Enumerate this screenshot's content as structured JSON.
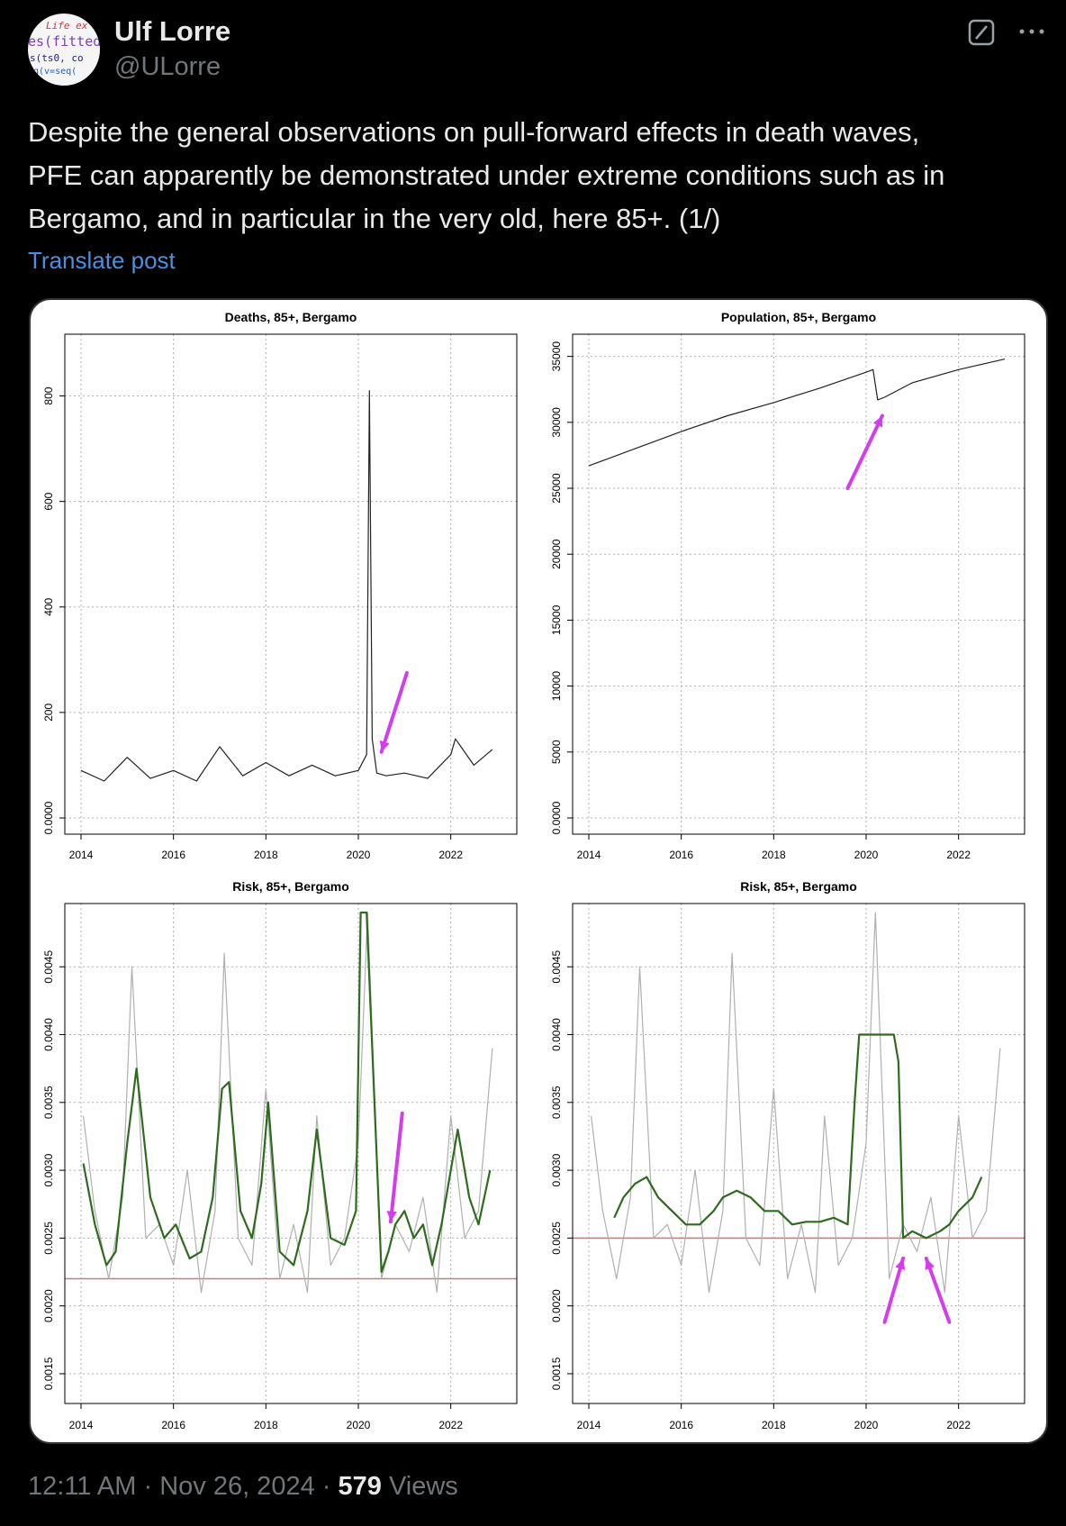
{
  "author": {
    "name": "Ulf Lorre",
    "handle": "@ULorre"
  },
  "avatar_text": [
    "Life ex",
    "es(fitted(",
    "s(ts0, co",
    "q(v=seq("
  ],
  "post": {
    "lines": [
      "Despite the general observations on pull-forward effects in death waves,",
      "PFE can apparently be demonstrated under extreme conditions such as in",
      "Bergamo, and in particular in the very old, here 85+. (1/)"
    ],
    "translate_label": "Translate post"
  },
  "meta": {
    "time": "12:11 AM",
    "sep": "·",
    "date": "Nov 26, 2024",
    "views_count": "579",
    "views_label": "Views"
  },
  "icons": {
    "grok": "grok-icon",
    "more": "more-icon"
  },
  "colors": {
    "accent_link": "#4a90e2",
    "smooth_line": "#2e6b1f",
    "raw_line": "#b0b0b0",
    "baseline": "#c08080",
    "arrow": "#d53cf0"
  },
  "chart_data": [
    {
      "type": "line",
      "title": "Deaths, 85+, Bergamo",
      "xlim": [
        2014,
        2023
      ],
      "ylim": [
        0,
        900
      ],
      "xticks": [
        2014,
        2016,
        2018,
        2020,
        2022
      ],
      "yticks": [
        0,
        200,
        400,
        600,
        800
      ],
      "grid": true,
      "series": [
        {
          "x": [
            2014.0,
            2014.5,
            2015.0,
            2015.5,
            2016.0,
            2016.5,
            2017.0,
            2017.5,
            2018.0,
            2018.5,
            2019.0,
            2019.5,
            2020.0,
            2020.18,
            2020.24,
            2020.3,
            2020.4,
            2020.6,
            2021.0,
            2021.5,
            2022.0,
            2022.1,
            2022.5,
            2022.9
          ],
          "y": [
            90,
            70,
            115,
            75,
            90,
            70,
            135,
            80,
            105,
            80,
            100,
            80,
            90,
            120,
            810,
            150,
            85,
            80,
            85,
            75,
            120,
            150,
            100,
            130
          ]
        }
      ],
      "annotations": [
        {
          "type": "arrow",
          "from": [
            2021.05,
            275
          ],
          "to": [
            2020.5,
            125
          ]
        }
      ]
    },
    {
      "type": "line",
      "title": "Population, 85+, Bergamo",
      "xlim": [
        2014,
        2023
      ],
      "ylim": [
        0,
        36000
      ],
      "xticks": [
        2014,
        2016,
        2018,
        2020,
        2022
      ],
      "yticks": [
        0,
        5000,
        10000,
        15000,
        20000,
        25000,
        30000,
        35000
      ],
      "grid": true,
      "series": [
        {
          "x": [
            2014.0,
            2015.0,
            2016.0,
            2017.0,
            2018.0,
            2019.0,
            2020.0,
            2020.15,
            2020.25,
            2020.4,
            2021.0,
            2022.0,
            2023.0
          ],
          "y": [
            26700,
            28000,
            29300,
            30500,
            31500,
            32600,
            33800,
            34000,
            31700,
            31900,
            33000,
            34000,
            34800
          ]
        }
      ],
      "annotations": [
        {
          "type": "arrow",
          "from": [
            2019.6,
            25000
          ],
          "to": [
            2020.35,
            30500
          ]
        }
      ]
    },
    {
      "type": "line",
      "title": "Risk, 85+, Bergamo",
      "xlim": [
        2014,
        2023
      ],
      "ylim": [
        0.0014,
        0.0049
      ],
      "xticks": [
        2014,
        2016,
        2018,
        2020,
        2022
      ],
      "yticks": [
        0.0015,
        0.002,
        0.0025,
        0.003,
        0.0035,
        0.004,
        0.0045
      ],
      "grid": true,
      "baseline": 0.0022,
      "series": [
        {
          "kind": "raw",
          "x": [
            2014.05,
            2014.3,
            2014.6,
            2014.9,
            2015.1,
            2015.4,
            2015.7,
            2016.0,
            2016.3,
            2016.6,
            2016.9,
            2017.1,
            2017.4,
            2017.7,
            2018.0,
            2018.3,
            2018.6,
            2018.9,
            2019.1,
            2019.4,
            2019.7,
            2020.0,
            2020.2,
            2020.5,
            2020.8,
            2021.1,
            2021.4,
            2021.7,
            2022.0,
            2022.3,
            2022.6,
            2022.9
          ],
          "y": [
            0.0034,
            0.0027,
            0.0022,
            0.0028,
            0.0045,
            0.0025,
            0.0026,
            0.0023,
            0.003,
            0.0021,
            0.0027,
            0.0046,
            0.0025,
            0.0023,
            0.0036,
            0.0022,
            0.0026,
            0.0021,
            0.0034,
            0.0023,
            0.0025,
            0.0032,
            0.0049,
            0.0022,
            0.0026,
            0.0024,
            0.0028,
            0.0021,
            0.0034,
            0.0025,
            0.0027,
            0.0039
          ]
        },
        {
          "kind": "smooth",
          "x": [
            2014.05,
            2014.3,
            2014.55,
            2014.75,
            2015.0,
            2015.2,
            2015.5,
            2015.8,
            2016.05,
            2016.35,
            2016.6,
            2016.85,
            2017.05,
            2017.2,
            2017.45,
            2017.7,
            2017.9,
            2018.05,
            2018.3,
            2018.6,
            2018.9,
            2019.1,
            2019.4,
            2019.7,
            2019.95,
            2020.05,
            2020.18,
            2020.5,
            2020.65,
            2020.8,
            2021.0,
            2021.2,
            2021.4,
            2021.6,
            2021.8,
            2022.0,
            2022.15,
            2022.4,
            2022.6,
            2022.85
          ],
          "y": [
            0.00305,
            0.0026,
            0.0023,
            0.0024,
            0.0032,
            0.00375,
            0.0028,
            0.0025,
            0.0026,
            0.00235,
            0.0024,
            0.0028,
            0.0036,
            0.00365,
            0.0027,
            0.0025,
            0.0029,
            0.0035,
            0.0024,
            0.0023,
            0.0027,
            0.0033,
            0.0025,
            0.00245,
            0.0027,
            0.0049,
            0.0049,
            0.00225,
            0.0024,
            0.0026,
            0.0027,
            0.0025,
            0.0026,
            0.0023,
            0.0026,
            0.003,
            0.0033,
            0.0028,
            0.0026,
            0.003
          ]
        }
      ],
      "annotations": [
        {
          "type": "arrow",
          "from": [
            2020.95,
            0.00342
          ],
          "to": [
            2020.7,
            0.00262
          ]
        }
      ]
    },
    {
      "type": "line",
      "title": "Risk, 85+, Bergamo",
      "xlim": [
        2014,
        2023
      ],
      "ylim": [
        0.0014,
        0.0049
      ],
      "xticks": [
        2014,
        2016,
        2018,
        2020,
        2022
      ],
      "yticks": [
        0.0015,
        0.002,
        0.0025,
        0.003,
        0.0035,
        0.004,
        0.0045
      ],
      "grid": true,
      "baseline": 0.0025,
      "series": [
        {
          "kind": "raw",
          "x": [
            2014.05,
            2014.3,
            2014.6,
            2014.9,
            2015.1,
            2015.4,
            2015.7,
            2016.0,
            2016.3,
            2016.6,
            2016.9,
            2017.1,
            2017.4,
            2017.7,
            2018.0,
            2018.3,
            2018.6,
            2018.9,
            2019.1,
            2019.4,
            2019.7,
            2020.0,
            2020.2,
            2020.5,
            2020.8,
            2021.1,
            2021.4,
            2021.7,
            2022.0,
            2022.3,
            2022.6,
            2022.9
          ],
          "y": [
            0.0034,
            0.0027,
            0.0022,
            0.0028,
            0.0045,
            0.0025,
            0.0026,
            0.0023,
            0.003,
            0.0021,
            0.0027,
            0.0046,
            0.0025,
            0.0023,
            0.0036,
            0.0022,
            0.0026,
            0.0021,
            0.0034,
            0.0023,
            0.0025,
            0.0032,
            0.0049,
            0.0022,
            0.0026,
            0.0024,
            0.0028,
            0.0021,
            0.0034,
            0.0025,
            0.0027,
            0.0039
          ]
        },
        {
          "kind": "smooth",
          "x": [
            2014.55,
            2014.75,
            2015.0,
            2015.25,
            2015.5,
            2015.8,
            2016.1,
            2016.4,
            2016.7,
            2016.9,
            2017.2,
            2017.5,
            2017.8,
            2018.1,
            2018.4,
            2018.7,
            2019.0,
            2019.3,
            2019.6,
            2019.75,
            2019.85,
            2020.1,
            2020.4,
            2020.6,
            2020.7,
            2020.8,
            2021.0,
            2021.3,
            2021.6,
            2021.8,
            2022.0,
            2022.3,
            2022.5
          ],
          "y": [
            0.00265,
            0.0028,
            0.0029,
            0.00295,
            0.0028,
            0.0027,
            0.0026,
            0.0026,
            0.0027,
            0.0028,
            0.00285,
            0.0028,
            0.0027,
            0.0027,
            0.0026,
            0.00262,
            0.00262,
            0.00265,
            0.0026,
            0.0035,
            0.004,
            0.004,
            0.004,
            0.004,
            0.0038,
            0.0025,
            0.00255,
            0.0025,
            0.00255,
            0.0026,
            0.0027,
            0.0028,
            0.00295
          ]
        }
      ],
      "annotations": [
        {
          "type": "arrow",
          "from": [
            2020.4,
            0.00188
          ],
          "to": [
            2020.8,
            0.00235
          ]
        },
        {
          "type": "arrow",
          "from": [
            2021.8,
            0.00188
          ],
          "to": [
            2021.3,
            0.00235
          ]
        }
      ]
    }
  ]
}
